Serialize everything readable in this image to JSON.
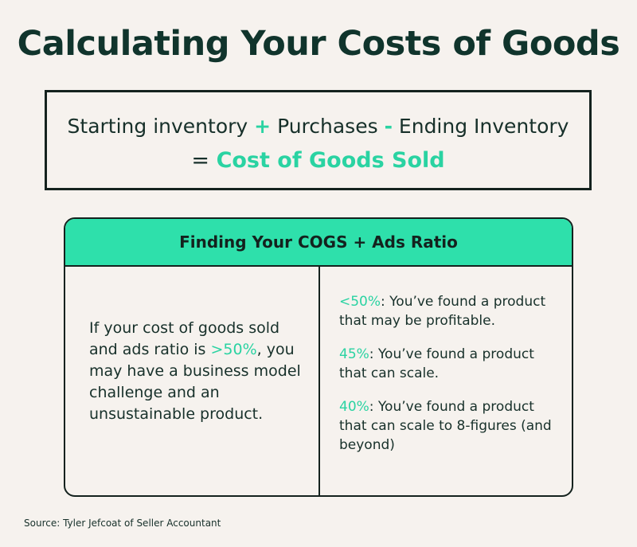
{
  "title": "Calculating Your Costs of Goods",
  "formula": {
    "part1": "Starting inventory",
    "op1": "+",
    "part2": "Purchases",
    "op2": "-",
    "part3": "Ending Inventory",
    "equals": "=",
    "result": "Cost of Goods Sold"
  },
  "ratio_table": {
    "header": "Finding Your COGS + Ads Ratio",
    "left": {
      "before": "If your cost of goods sold and ads ratio is",
      "highlight": ">50%",
      "after": ", you may have a business model challenge and an unsustainable product."
    },
    "right": [
      {
        "threshold": "<50%",
        "text": ": You’ve found a product that may be profitable."
      },
      {
        "threshold": "45%",
        "text": ": You’ve found a product that can scale."
      },
      {
        "threshold": "40%",
        "text": ": You’ve found a product that can scale to 8-figures (and beyond)"
      }
    ]
  },
  "source": "Source: Tyler Jefcoat of Seller Accountant",
  "colors": {
    "accent": "#2ee0ab",
    "dark": "#14221e",
    "background": "#f6f2ee"
  }
}
